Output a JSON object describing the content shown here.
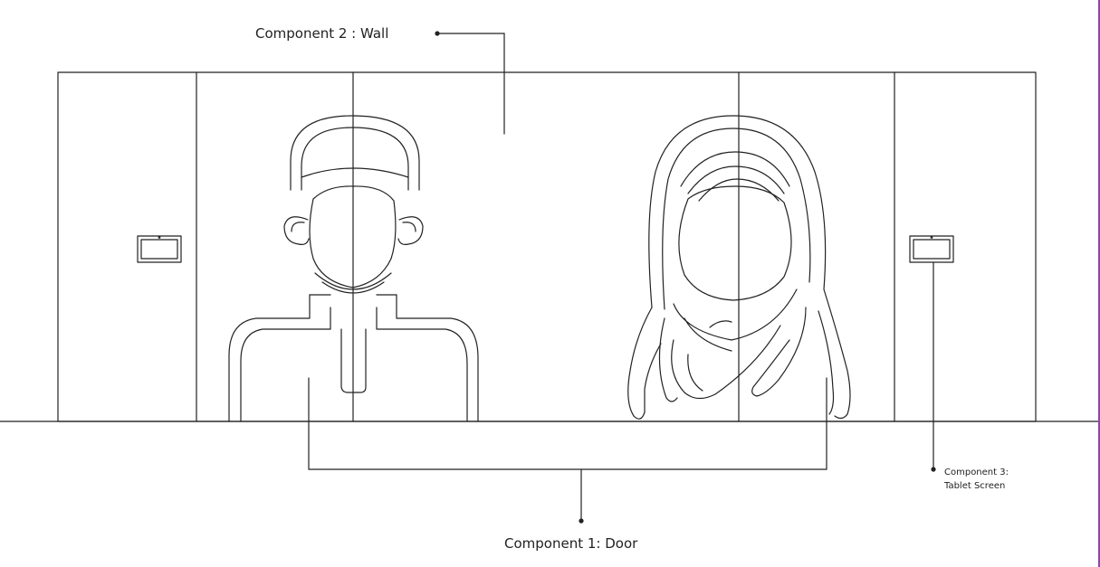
{
  "labels": {
    "wall": "Component 2  : Wall",
    "door": "Component 1: Door",
    "tablet_line1": "Component 3:",
    "tablet_line2": "Tablet Screen"
  },
  "colors": {
    "line": "#222222",
    "page_edge": "#8e44ad"
  }
}
